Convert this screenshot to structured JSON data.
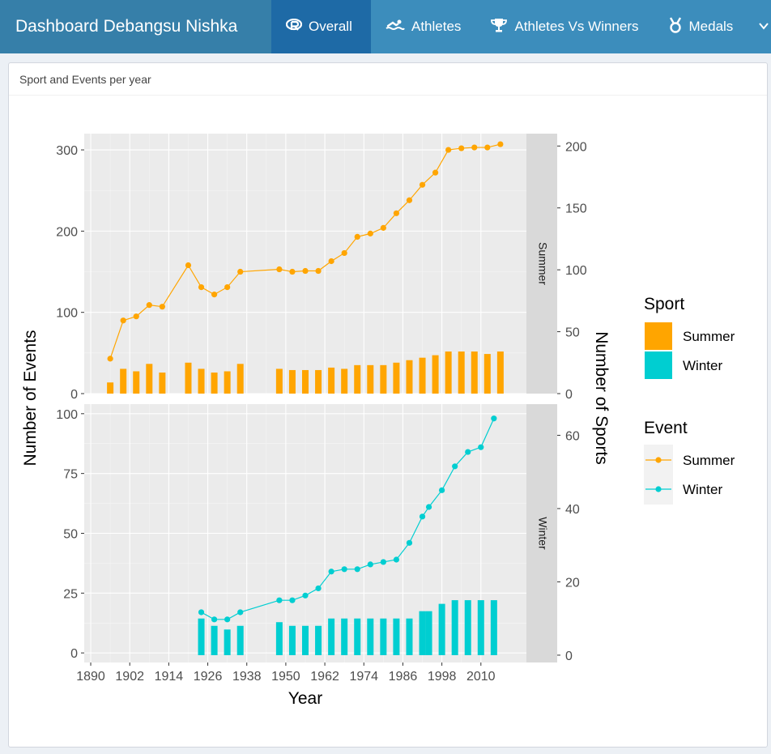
{
  "header": {
    "title": "Dashboard Debangsu Nishka",
    "tabs": [
      {
        "label": "Overall",
        "icon": "r-logo-icon"
      },
      {
        "label": "Athletes",
        "icon": "swimmer-icon"
      },
      {
        "label": "Athletes Vs Winners",
        "icon": "trophy-icon"
      },
      {
        "label": "Medals",
        "icon": "medal-icon"
      }
    ],
    "overflow_icon": "chevron-down-icon"
  },
  "box": {
    "title": "Sport and Events per year"
  },
  "chart_data": {
    "type": "line",
    "xlabel": "Year",
    "ylabel_left": "Number of Events",
    "ylabel_right": "Number of Sports",
    "x_ticks": [
      1890,
      1902,
      1914,
      1926,
      1938,
      1950,
      1962,
      1974,
      1986,
      1998,
      2010
    ],
    "xlim": [
      1888,
      2024
    ],
    "legend": {
      "sport_title": "Sport",
      "event_title": "Event",
      "entries": [
        "Summer",
        "Winter"
      ],
      "colors": {
        "Summer": "#ffa500",
        "Winter": "#00ced1"
      },
      "placement": "right"
    },
    "panels": [
      {
        "strip": "Summer",
        "ylim_events": [
          0,
          320
        ],
        "ylim_sports": [
          0,
          210
        ],
        "event_ticks": [
          0,
          100,
          200,
          300
        ],
        "sport_ticks": [
          0,
          50,
          100,
          150,
          200
        ],
        "events": {
          "x": [
            1896,
            1900,
            1904,
            1908,
            1912,
            1920,
            1924,
            1928,
            1932,
            1936,
            1948,
            1952,
            1956,
            1960,
            1964,
            1968,
            1972,
            1976,
            1980,
            1984,
            1988,
            1992,
            1996,
            2000,
            2004,
            2008,
            2012,
            2016
          ],
          "y": [
            43,
            90,
            95,
            109,
            107,
            158,
            131,
            122,
            131,
            150,
            153,
            150,
            151,
            151,
            163,
            173,
            193,
            197,
            204,
            222,
            238,
            257,
            272,
            300,
            302,
            303,
            303,
            307
          ]
        },
        "sports": {
          "x": [
            1896,
            1900,
            1904,
            1908,
            1912,
            1920,
            1924,
            1928,
            1932,
            1936,
            1948,
            1952,
            1956,
            1960,
            1964,
            1968,
            1972,
            1976,
            1980,
            1984,
            1988,
            1992,
            1996,
            2000,
            2004,
            2008,
            2012,
            2016
          ],
          "y": [
            9,
            20,
            18,
            24,
            17,
            25,
            20,
            17,
            18,
            24,
            20,
            19,
            19,
            19,
            21,
            20,
            23,
            23,
            23,
            25,
            27,
            29,
            31,
            34,
            34,
            34,
            32,
            34
          ]
        }
      },
      {
        "strip": "Winter",
        "ylim_events": [
          -4,
          104
        ],
        "ylim_sports": [
          -2,
          68.5
        ],
        "event_ticks": [
          0,
          25,
          50,
          75,
          100
        ],
        "sport_ticks": [
          0,
          20,
          40,
          60
        ],
        "events": {
          "x": [
            1924,
            1928,
            1932,
            1936,
            1948,
            1952,
            1956,
            1960,
            1964,
            1968,
            1972,
            1976,
            1980,
            1984,
            1988,
            1992,
            1994,
            1998,
            2002,
            2006,
            2010,
            2014
          ],
          "y": [
            17,
            14,
            14,
            17,
            22,
            22,
            24,
            27,
            34,
            35,
            35,
            37,
            38,
            39,
            46,
            57,
            61,
            68,
            78,
            84,
            86,
            98
          ]
        },
        "sports": {
          "x": [
            1924,
            1928,
            1932,
            1936,
            1948,
            1952,
            1956,
            1960,
            1964,
            1968,
            1972,
            1976,
            1980,
            1984,
            1988,
            1992,
            1994,
            1998,
            2002,
            2006,
            2010,
            2014
          ],
          "y": [
            10,
            8,
            7,
            8,
            9,
            8,
            8,
            8,
            10,
            10,
            10,
            10,
            10,
            10,
            10,
            12,
            12,
            14,
            15,
            15,
            15,
            15
          ]
        }
      }
    ]
  }
}
